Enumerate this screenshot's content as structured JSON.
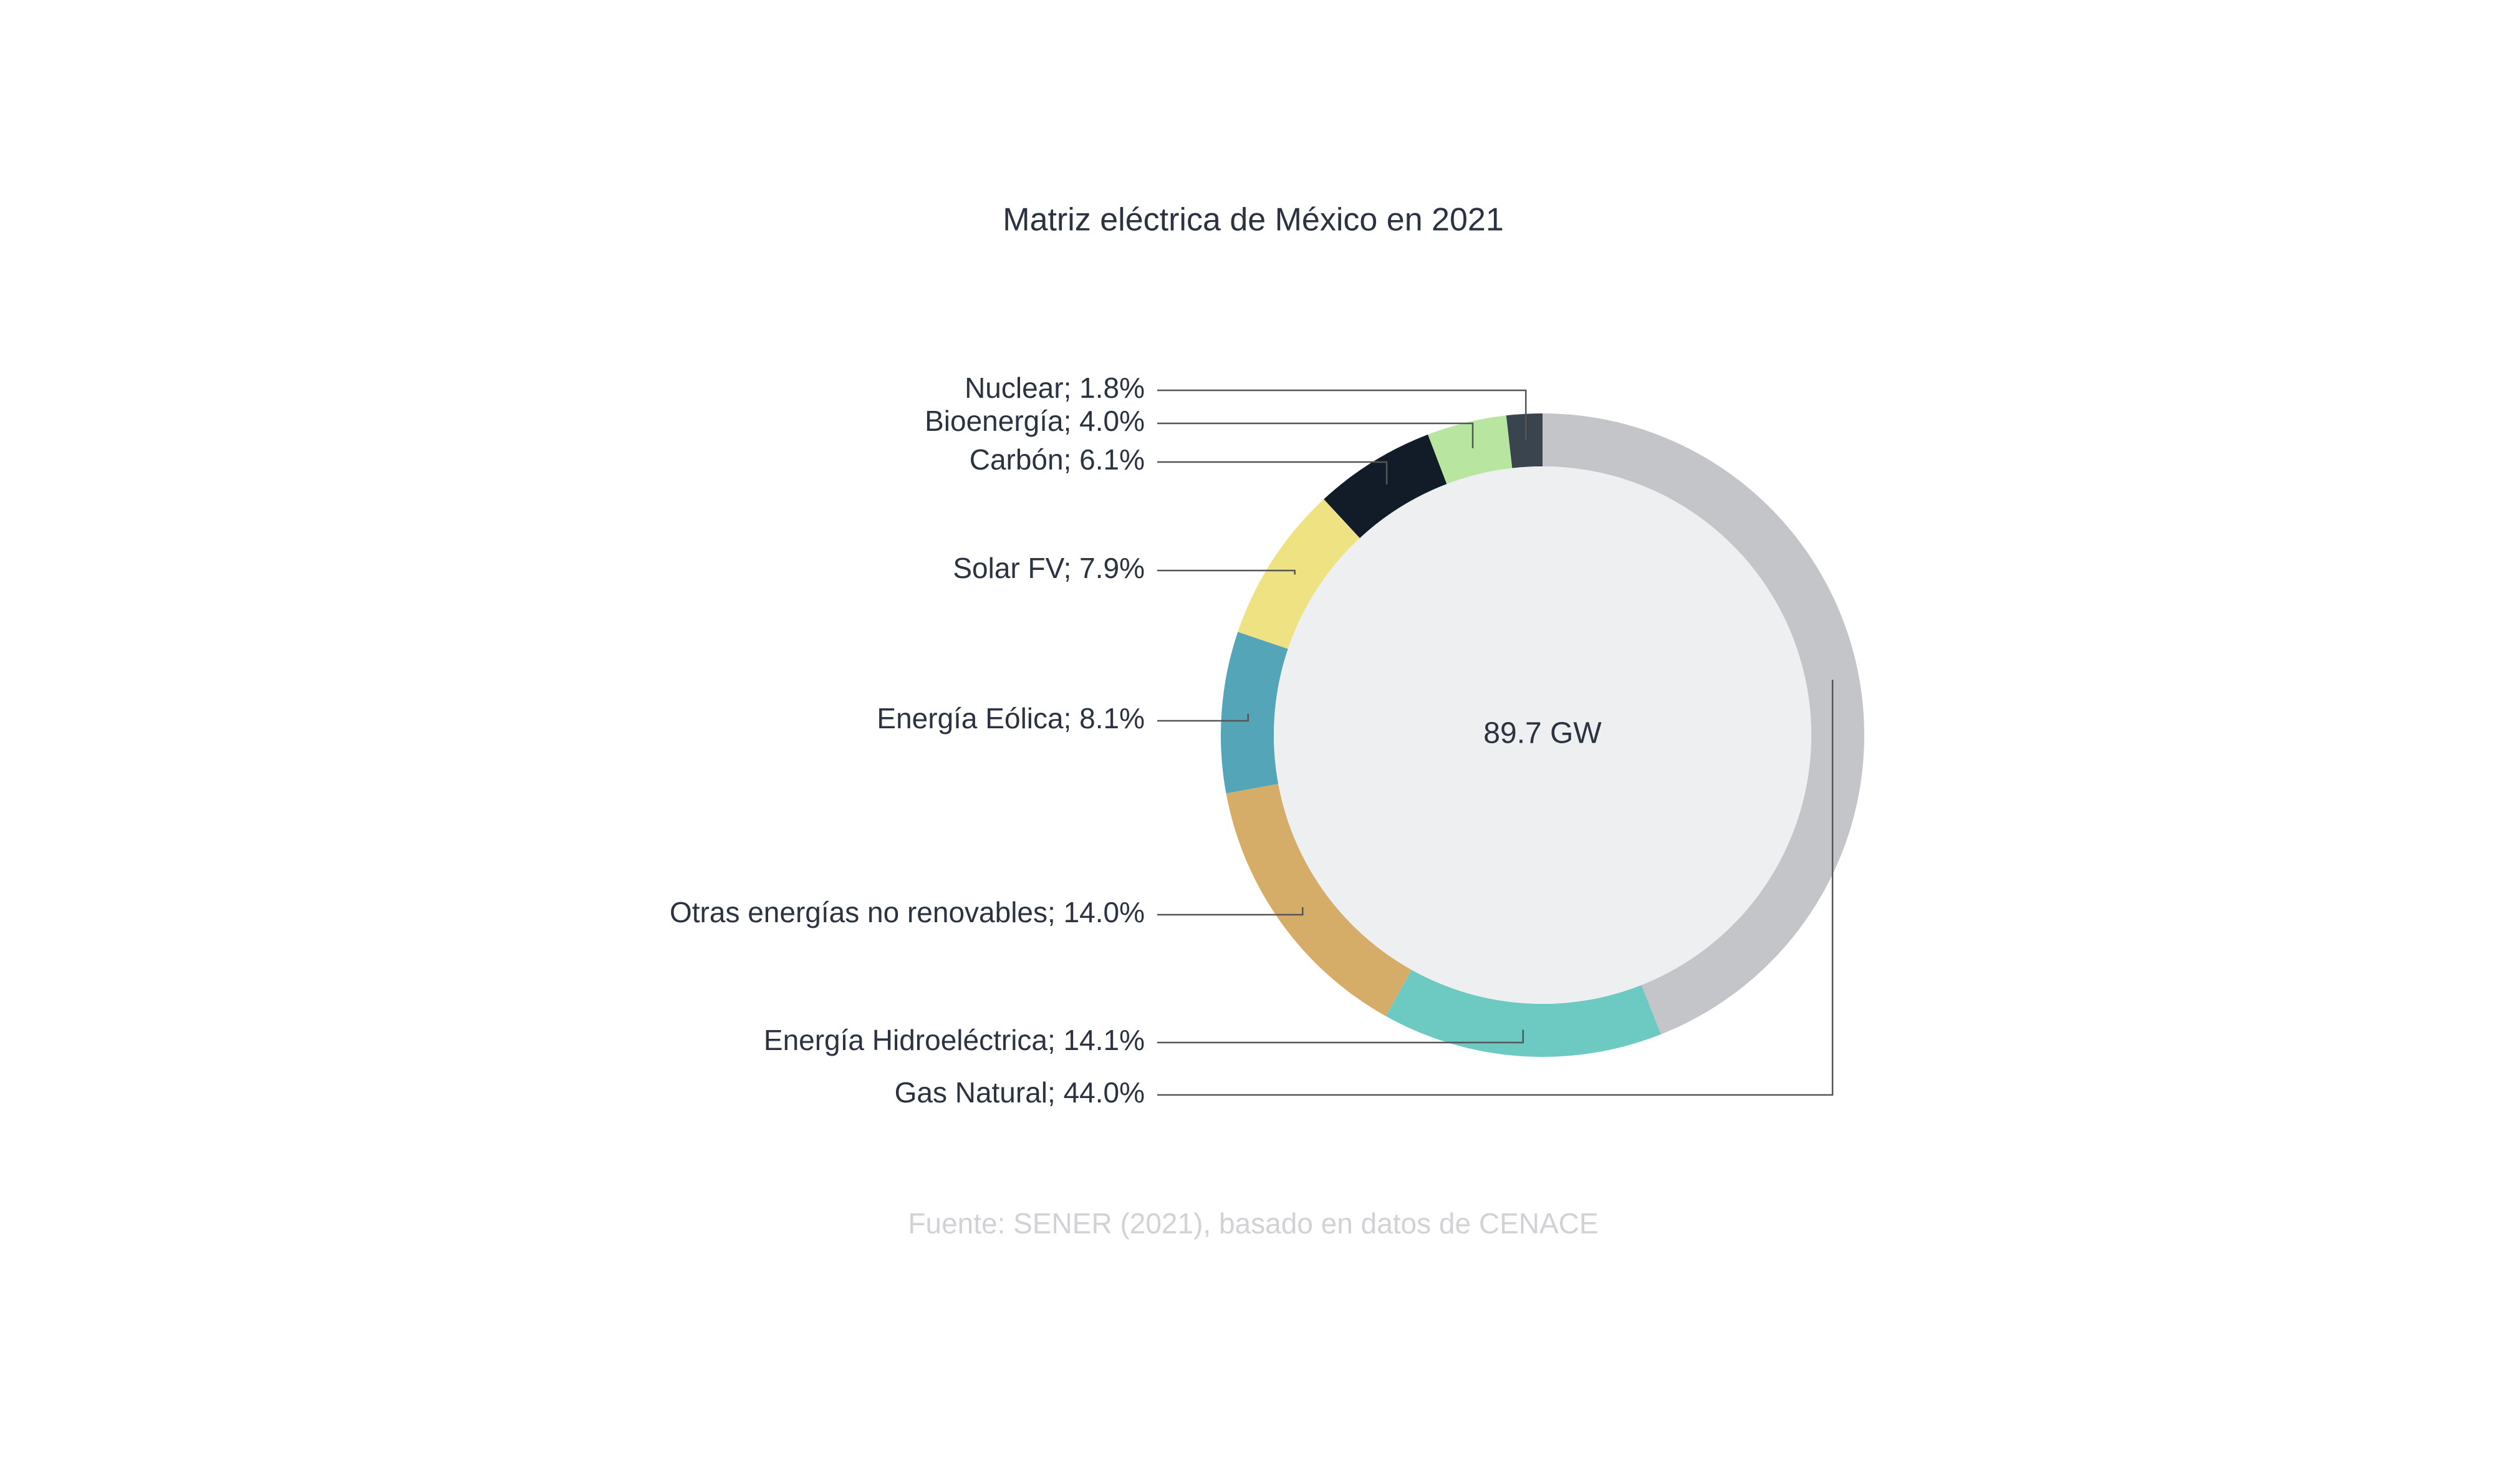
{
  "chart_data": {
    "type": "donut",
    "title": "Matriz eléctrica de México en 2021",
    "center_label": "89.7 GW",
    "source": "Fuente: SENER (2021), basado en datos de CENACE",
    "values": [
      44.0,
      14.1,
      14.0,
      8.1,
      7.9,
      6.1,
      4.0,
      1.8
    ],
    "value_labels": [
      "Gas Natural; 44.0%",
      "Energía Hidroeléctrica; 14.1%",
      "Otras energías no renovables; 14.0%",
      "Energía Eólica; 8.1%",
      "Solar FV; 7.9%",
      "Carbón; 6.1%",
      "Bioenergía; 4.0%",
      "Nuclear; 1.8%"
    ],
    "colors": [
      "#c4c5c8",
      "#6ccac3",
      "#d6ad68",
      "#55a5b8",
      "#efe283",
      "#121c28",
      "#b8e6a0",
      "#3a444f"
    ]
  }
}
